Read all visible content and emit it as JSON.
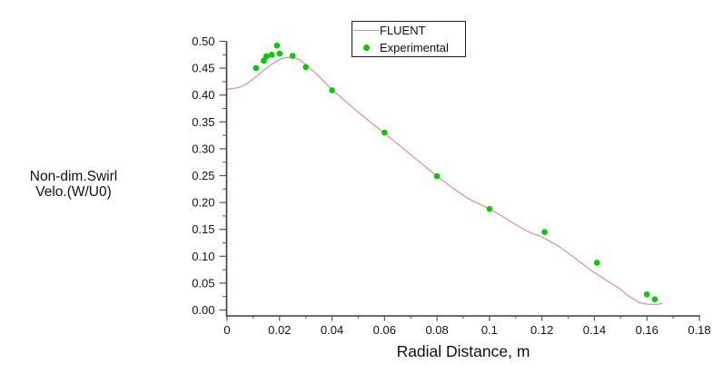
{
  "figure": {
    "background": "#ffffff",
    "axis_color": "#3a3a3a",
    "tick_color": "#555555"
  },
  "legend": {
    "border": true,
    "entries": [
      {
        "label": "FLUENT",
        "swatch": "line",
        "color": "#e2939e"
      },
      {
        "label": "Experimental",
        "swatch": "dot",
        "color": "#00cd00"
      }
    ]
  },
  "chart_data": {
    "type": "line",
    "title": "",
    "xlabel": "Radial Distance, m",
    "ylabel_lines": [
      "Non-dim.Swirl",
      "Velo.(W/U0)"
    ],
    "xlim": [
      0,
      0.18
    ],
    "ylim": [
      0,
      0.5
    ],
    "grid": false,
    "legend_position": "top-center",
    "x_ticks": {
      "values": [
        0,
        0.02,
        0.04,
        0.06,
        0.08,
        0.1,
        0.12,
        0.14,
        0.16,
        0.18
      ],
      "labels": [
        "0",
        "0.02",
        "0.04",
        "0.06",
        "0.08",
        "0.1",
        "0.12",
        "0.14",
        "0.16",
        "0.18"
      ],
      "minor_step": 0.01
    },
    "y_ticks": {
      "values": [
        0,
        0.05,
        0.1,
        0.15,
        0.2,
        0.25,
        0.3,
        0.35,
        0.4,
        0.45,
        0.5
      ],
      "labels": [
        "0.00",
        "0.05",
        "0.10",
        "0.15",
        "0.20",
        "0.25",
        "0.30",
        "0.35",
        "0.40",
        "0.45",
        "0.50"
      ],
      "minor_step": 0.025
    },
    "series": [
      {
        "name": "FLUENT",
        "type": "line",
        "color": "#e2939e",
        "points": [
          [
            0.0,
            0.411
          ],
          [
            0.0025,
            0.412
          ],
          [
            0.005,
            0.415
          ],
          [
            0.0075,
            0.421
          ],
          [
            0.01,
            0.43
          ],
          [
            0.0125,
            0.44
          ],
          [
            0.015,
            0.45
          ],
          [
            0.0175,
            0.459
          ],
          [
            0.02,
            0.466
          ],
          [
            0.0225,
            0.47
          ],
          [
            0.025,
            0.47
          ],
          [
            0.0275,
            0.466
          ],
          [
            0.03,
            0.457
          ],
          [
            0.033,
            0.444
          ],
          [
            0.036,
            0.43
          ],
          [
            0.04,
            0.41
          ],
          [
            0.045,
            0.389
          ],
          [
            0.05,
            0.368
          ],
          [
            0.055,
            0.348
          ],
          [
            0.06,
            0.329
          ],
          [
            0.066,
            0.305
          ],
          [
            0.072,
            0.281
          ],
          [
            0.08,
            0.249
          ],
          [
            0.086,
            0.227
          ],
          [
            0.092,
            0.207
          ],
          [
            0.1,
            0.188
          ],
          [
            0.104,
            0.177
          ],
          [
            0.108,
            0.165
          ],
          [
            0.112,
            0.153
          ],
          [
            0.116,
            0.143
          ],
          [
            0.12,
            0.136
          ],
          [
            0.126,
            0.12
          ],
          [
            0.132,
            0.099
          ],
          [
            0.138,
            0.076
          ],
          [
            0.144,
            0.057
          ],
          [
            0.149,
            0.042
          ],
          [
            0.153,
            0.026
          ],
          [
            0.157,
            0.014
          ],
          [
            0.16,
            0.011
          ],
          [
            0.163,
            0.01
          ],
          [
            0.166,
            0.012
          ]
        ]
      },
      {
        "name": "Experimental",
        "type": "scatter",
        "color": "#00cd00",
        "marker": "circle",
        "points": [
          [
            0.011,
            0.45
          ],
          [
            0.014,
            0.464
          ],
          [
            0.015,
            0.472
          ],
          [
            0.017,
            0.475
          ],
          [
            0.019,
            0.492
          ],
          [
            0.02,
            0.477
          ],
          [
            0.025,
            0.473
          ],
          [
            0.03,
            0.452
          ],
          [
            0.04,
            0.409
          ],
          [
            0.06,
            0.33
          ],
          [
            0.08,
            0.249
          ],
          [
            0.1,
            0.188
          ],
          [
            0.121,
            0.145
          ],
          [
            0.141,
            0.088
          ],
          [
            0.16,
            0.029
          ],
          [
            0.163,
            0.02
          ]
        ]
      }
    ]
  }
}
